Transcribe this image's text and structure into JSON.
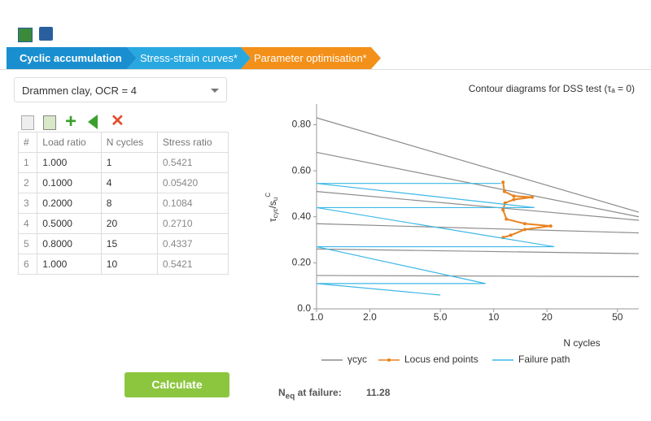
{
  "tabs": [
    "Cyclic accumulation",
    "Stress-strain curves*",
    "Parameter optimisation*"
  ],
  "dropdown": "Drammen clay, OCR = 4",
  "table": {
    "headers": [
      "#",
      "Load ratio",
      "N cycles",
      "Stress ratio"
    ],
    "rows": [
      [
        "1",
        "1.000",
        "1",
        "0.5421"
      ],
      [
        "2",
        "0.1000",
        "4",
        "0.05420"
      ],
      [
        "3",
        "0.2000",
        "8",
        "0.1084"
      ],
      [
        "4",
        "0.5000",
        "20",
        "0.2710"
      ],
      [
        "5",
        "0.8000",
        "15",
        "0.4337"
      ],
      [
        "6",
        "1.000",
        "10",
        "0.5421"
      ]
    ]
  },
  "button": "Calculate",
  "result": {
    "label_parts": [
      "N",
      "eq",
      " at failure:"
    ],
    "value": "11.28"
  },
  "chart_data": {
    "type": "line",
    "title": "Contour diagrams for DSS test (τₐ = 0)",
    "ylabel_parts": [
      "τ",
      "cyc",
      "/s",
      "u",
      "C"
    ],
    "xlabel": "N cycles",
    "xscale": "log",
    "xlim": [
      1,
      66
    ],
    "ylim": [
      0,
      0.89
    ],
    "xticks": [
      {
        "value": 1,
        "label": "1.0"
      },
      {
        "value": 2,
        "label": "2.0"
      },
      {
        "value": 5,
        "label": "5.0"
      },
      10,
      20,
      50
    ],
    "yticks": [
      {
        "value": 0,
        "label": "0.0"
      },
      {
        "value": 0.2,
        "label": "0.20"
      },
      {
        "value": 0.4,
        "label": "0.40"
      },
      {
        "value": 0.6,
        "label": "0.60"
      },
      {
        "value": 0.8,
        "label": "0.80"
      }
    ],
    "grid": false,
    "legend": "bottom",
    "series": [
      {
        "name": "γcyc",
        "color": "#8c8c8c",
        "marker": false,
        "x": [
          1,
          66,
          null,
          1,
          66,
          null,
          1,
          66,
          null,
          1,
          66,
          null,
          1,
          66,
          null,
          1,
          66
        ],
        "y": [
          0.83,
          0.42,
          null,
          0.68,
          0.4,
          null,
          0.51,
          0.385,
          null,
          0.37,
          0.33,
          null,
          0.26,
          0.24,
          null,
          0.145,
          0.14
        ]
      },
      {
        "name": "Locus end points",
        "color": "#e8821e",
        "marker": true,
        "x": [
          11.3,
          11.5,
          13,
          16.5,
          13,
          11.6,
          11.3,
          11.8,
          15,
          21,
          15,
          12.5,
          11.3
        ],
        "y": [
          0.55,
          0.51,
          0.49,
          0.485,
          0.475,
          0.46,
          0.43,
          0.39,
          0.37,
          0.36,
          0.345,
          0.32,
          0.31
        ]
      },
      {
        "name": "Failure path",
        "color": "#3db8e6",
        "marker": false,
        "x": [
          11,
          1,
          17,
          1,
          22,
          1,
          9,
          1,
          5
        ],
        "y": [
          0.545,
          0.545,
          0.44,
          0.44,
          0.27,
          0.27,
          0.11,
          0.11,
          0.06
        ]
      }
    ]
  }
}
